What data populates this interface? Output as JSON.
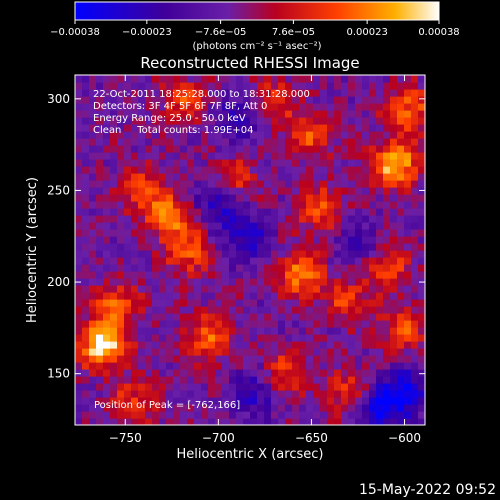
{
  "chart_data": {
    "type": "heatmap",
    "title": "Reconstructed RHESSI Image",
    "xlabel": "Heliocentric X (arcsec)",
    "ylabel": "Heliocentric Y (arcsec)",
    "xlim": [
      -777,
      -589
    ],
    "ylim": [
      122,
      313
    ],
    "x_ticks": [
      -750,
      -700,
      -650,
      -600
    ],
    "x_tick_labels": [
      "−750",
      "−700",
      "−650",
      "−600"
    ],
    "y_ticks": [
      150,
      200,
      250,
      300
    ],
    "y_tick_labels": [
      "150",
      "200",
      "250",
      "300"
    ],
    "colorbar": {
      "min": -0.00038,
      "max": 0.00038,
      "ticks": [
        -0.00038,
        -0.00023,
        -7.6e-05,
        7.6e-05,
        0.00023,
        0.00038
      ],
      "tick_labels": [
        "−0.00038",
        "−0.00023",
        "−7.6e−05",
        "7.6e−05",
        "0.00023",
        "0.00038"
      ],
      "units_label": "(photons cm⁻² s⁻¹ asec⁻²)",
      "colors": [
        "#0000ff",
        "#400099",
        "#6a1fa8",
        "#b80020",
        "#ff4000",
        "#ffb000",
        "#ffffff"
      ]
    },
    "annotations": [
      "22-Oct-2011 18:25:28.000 to 18:31:28.000",
      "Detectors: 3F 4F 5F 6F 7F 8F, Att 0",
      "Energy Range: 25.0 - 50.0 keV",
      "Clean     Total counts: 1.99E+04"
    ],
    "peak_label": "Position of Peak = [-762,166]",
    "peak_position": [
      -762,
      166
    ],
    "blobs": [
      {
        "x": -762,
        "y": 166,
        "v": 1.0
      },
      {
        "x": -755,
        "y": 188,
        "v": 0.55
      },
      {
        "x": -740,
        "y": 250,
        "v": 0.5
      },
      {
        "x": -725,
        "y": 235,
        "v": 0.65
      },
      {
        "x": -715,
        "y": 215,
        "v": 0.5
      },
      {
        "x": -705,
        "y": 170,
        "v": 0.6
      },
      {
        "x": -718,
        "y": 300,
        "v": 0.45
      },
      {
        "x": -692,
        "y": 255,
        "v": 0.5
      },
      {
        "x": -670,
        "y": 300,
        "v": 0.4
      },
      {
        "x": -655,
        "y": 205,
        "v": 0.7
      },
      {
        "x": -645,
        "y": 240,
        "v": 0.55
      },
      {
        "x": -650,
        "y": 280,
        "v": 0.5
      },
      {
        "x": -630,
        "y": 190,
        "v": 0.45
      },
      {
        "x": -605,
        "y": 265,
        "v": 0.9
      },
      {
        "x": -598,
        "y": 295,
        "v": 0.6
      },
      {
        "x": -610,
        "y": 210,
        "v": 0.55
      },
      {
        "x": -665,
        "y": 150,
        "v": 0.5
      },
      {
        "x": -630,
        "y": 140,
        "v": 0.45
      },
      {
        "x": -745,
        "y": 135,
        "v": 0.45
      },
      {
        "x": -600,
        "y": 175,
        "v": 0.5
      }
    ],
    "cold": [
      {
        "x": -700,
        "y": 245,
        "v": -0.6
      },
      {
        "x": -685,
        "y": 225,
        "v": -0.55
      },
      {
        "x": -600,
        "y": 140,
        "v": -0.7
      },
      {
        "x": -615,
        "y": 130,
        "v": -0.6
      },
      {
        "x": -680,
        "y": 140,
        "v": -0.5
      },
      {
        "x": -690,
        "y": 290,
        "v": -0.45
      },
      {
        "x": -625,
        "y": 220,
        "v": -0.45
      }
    ]
  },
  "footer": {
    "date": "15-May-2022 09:52"
  }
}
